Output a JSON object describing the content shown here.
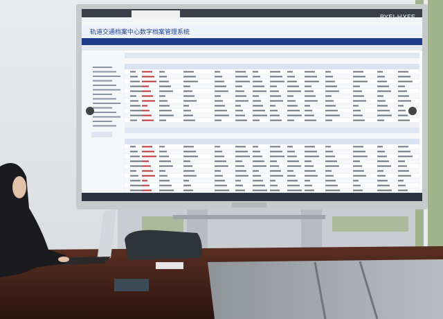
{
  "screen": {
    "system_title": "轨道交通档案中心数字档案管理系统",
    "watermark": "BYEJ-HXFE"
  }
}
